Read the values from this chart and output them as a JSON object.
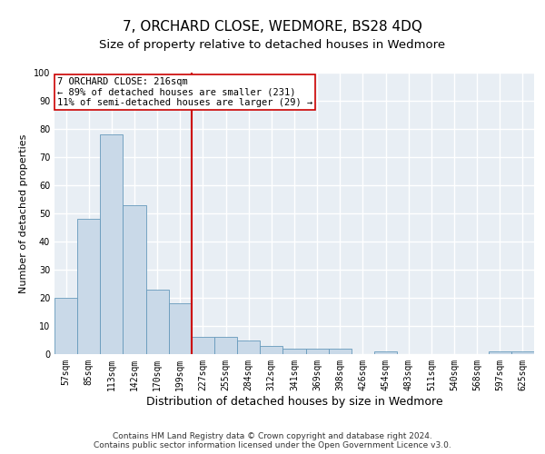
{
  "title": "7, ORCHARD CLOSE, WEDMORE, BS28 4DQ",
  "subtitle": "Size of property relative to detached houses in Wedmore",
  "xlabel": "Distribution of detached houses by size in Wedmore",
  "ylabel": "Number of detached properties",
  "categories": [
    "57sqm",
    "85sqm",
    "113sqm",
    "142sqm",
    "170sqm",
    "199sqm",
    "227sqm",
    "255sqm",
    "284sqm",
    "312sqm",
    "341sqm",
    "369sqm",
    "398sqm",
    "426sqm",
    "454sqm",
    "483sqm",
    "511sqm",
    "540sqm",
    "568sqm",
    "597sqm",
    "625sqm"
  ],
  "values": [
    20,
    48,
    78,
    53,
    23,
    18,
    6,
    6,
    5,
    3,
    2,
    2,
    2,
    0,
    1,
    0,
    0,
    0,
    0,
    1,
    1
  ],
  "bar_color": "#c9d9e8",
  "bar_edge_color": "#6699bb",
  "vline_x": 6,
  "vline_color": "#cc0000",
  "ylim": [
    0,
    100
  ],
  "yticks": [
    0,
    10,
    20,
    30,
    40,
    50,
    60,
    70,
    80,
    90,
    100
  ],
  "annotation_box_text": "7 ORCHARD CLOSE: 216sqm\n← 89% of detached houses are smaller (231)\n11% of semi-detached houses are larger (29) →",
  "annotation_box_color": "#cc0000",
  "footer_line1": "Contains HM Land Registry data © Crown copyright and database right 2024.",
  "footer_line2": "Contains public sector information licensed under the Open Government Licence v3.0.",
  "background_color": "#e8eef4",
  "grid_color": "#ffffff",
  "title_fontsize": 11,
  "subtitle_fontsize": 9.5,
  "xlabel_fontsize": 9,
  "ylabel_fontsize": 8,
  "tick_fontsize": 7,
  "annotation_fontsize": 7.5,
  "footer_fontsize": 6.5
}
